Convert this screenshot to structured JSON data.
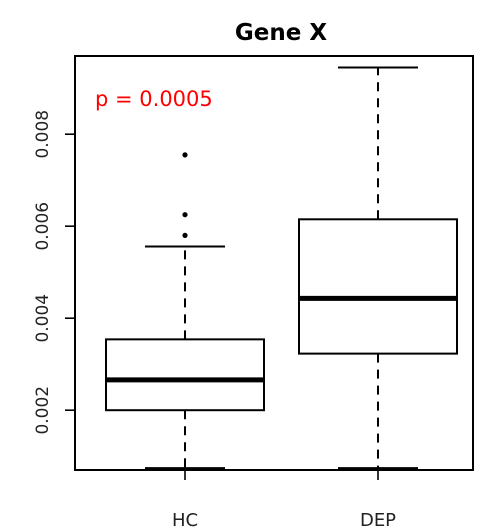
{
  "chart_data": {
    "type": "boxplot",
    "title": "Gene X",
    "xlabel": "",
    "ylabel": "",
    "categories": [
      "HC",
      "DEP"
    ],
    "ylim": [
      0.0007,
      0.0097
    ],
    "yticks": [
      "0.002",
      "0.004",
      "0.006",
      "0.008"
    ],
    "ytick_values": [
      0.002,
      0.004,
      0.006,
      0.008
    ],
    "annotation": {
      "text": "p = 0.0005",
      "color": "#ff0000"
    },
    "boxes": [
      {
        "name": "HC",
        "whisker_low": 0.00074,
        "q1": 0.002,
        "median": 0.00266,
        "q3": 0.00354,
        "whisker_high": 0.00556,
        "outliers": [
          0.0058,
          0.00625,
          0.00755
        ]
      },
      {
        "name": "DEP",
        "whisker_low": 0.00074,
        "q1": 0.00323,
        "median": 0.00443,
        "q3": 0.00615,
        "whisker_high": 0.00945,
        "outliers": []
      }
    ],
    "grid": false,
    "legend": "none"
  }
}
